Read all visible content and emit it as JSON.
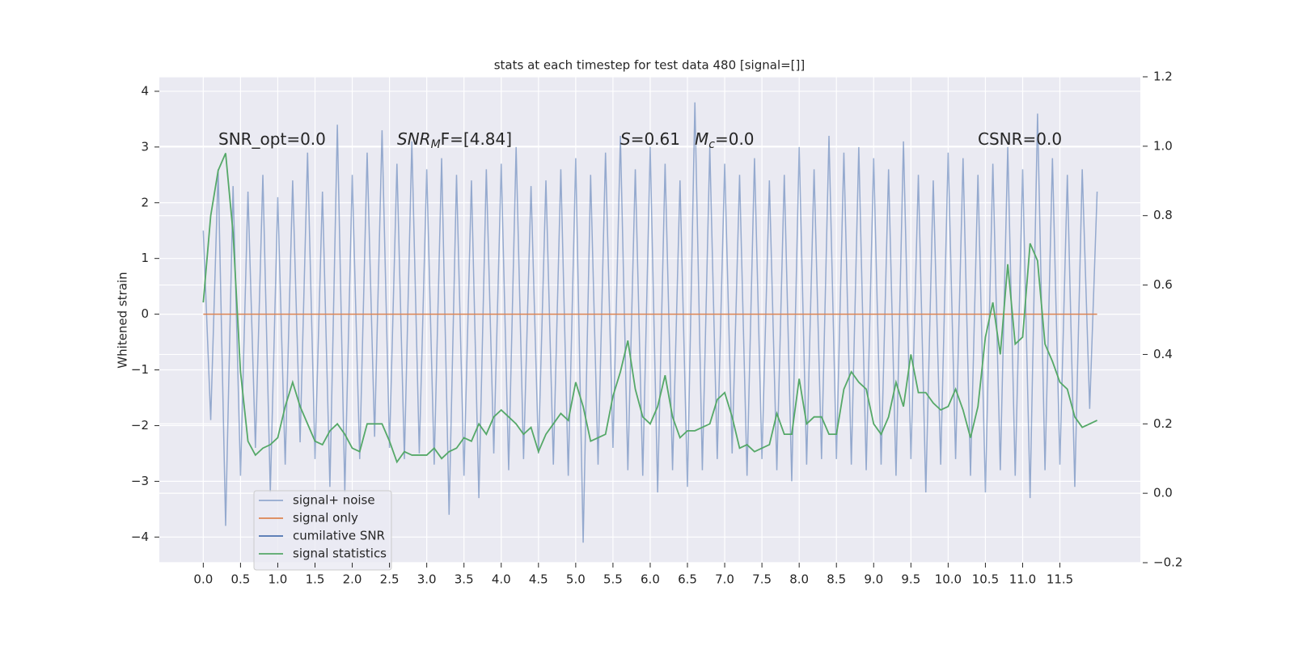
{
  "chart_data": {
    "type": "line",
    "title": "stats at each timestep for test data 480 [signal=[]]",
    "ylabel": "Whitened strain",
    "annotations": [
      {
        "main": "SNR_opt=0.0"
      },
      {
        "main": "SNR",
        "sub": "M",
        "rest": "F=[4.84]"
      },
      {
        "main": "S",
        "rest": "=0.61"
      },
      {
        "main": "M",
        "sub": "c",
        "rest": "=0.0"
      },
      {
        "main": "CSNR=0.0"
      }
    ],
    "x": [
      0,
      0.1,
      0.2,
      0.3,
      0.4,
      0.5,
      0.6,
      0.7,
      0.8,
      0.9,
      1,
      1.1,
      1.2,
      1.3,
      1.4,
      1.5,
      1.6,
      1.7,
      1.8,
      1.9,
      2,
      2.1,
      2.2,
      2.3,
      2.4,
      2.5,
      2.6,
      2.7,
      2.8,
      2.9,
      3,
      3.1,
      3.2,
      3.3,
      3.4,
      3.5,
      3.6,
      3.7,
      3.8,
      3.9,
      4,
      4.1,
      4.2,
      4.3,
      4.4,
      4.5,
      4.6,
      4.7,
      4.8,
      4.9,
      5,
      5.1,
      5.2,
      5.3,
      5.4,
      5.5,
      5.6,
      5.7,
      5.8,
      5.9,
      6,
      6.1,
      6.2,
      6.3,
      6.4,
      6.5,
      6.6,
      6.7,
      6.8,
      6.9,
      7,
      7.1,
      7.2,
      7.3,
      7.4,
      7.5,
      7.6,
      7.7,
      7.8,
      7.9,
      8,
      8.1,
      8.2,
      8.3,
      8.4,
      8.5,
      8.6,
      8.7,
      8.8,
      8.9,
      9,
      9.1,
      9.2,
      9.3,
      9.4,
      9.5,
      9.6,
      9.7,
      9.8,
      9.9,
      10,
      10.1,
      10.2,
      10.3,
      10.4,
      10.5,
      10.6,
      10.7,
      10.8,
      10.9,
      11,
      11.1,
      11.2,
      11.3,
      11.4,
      11.5,
      11.6,
      11.7,
      11.8,
      11.9,
      12
    ],
    "series": [
      {
        "name": "signal+ noise",
        "color": "#4c72b0",
        "alpha": 0.55,
        "axis": "y",
        "values": [
          1.5,
          -1.9,
          2.6,
          -3.8,
          2.3,
          -2.9,
          2.2,
          -2.4,
          2.5,
          -3.2,
          2.1,
          -2.7,
          2.4,
          -2.3,
          2.9,
          -2.6,
          2.2,
          -3.1,
          3.4,
          -3.2,
          2.5,
          -2.6,
          2.9,
          -2.2,
          3.3,
          -2.4,
          2.7,
          -2.6,
          3.1,
          -2.5,
          2.6,
          -2.7,
          2.8,
          -3.6,
          2.5,
          -2.9,
          2.4,
          -3.3,
          2.6,
          -2.5,
          2.7,
          -2.8,
          3.0,
          -2.6,
          2.3,
          -2.5,
          2.4,
          -2.7,
          2.6,
          -2.9,
          2.8,
          -4.1,
          2.5,
          -2.7,
          2.9,
          -2.4,
          3.2,
          -2.8,
          2.6,
          -2.9,
          3.0,
          -3.2,
          2.7,
          -2.8,
          2.4,
          -3.1,
          3.8,
          -2.8,
          3.0,
          -2.6,
          2.7,
          -2.5,
          2.5,
          -2.9,
          2.8,
          -2.6,
          2.4,
          -2.8,
          2.5,
          -3.0,
          3.0,
          -2.7,
          2.6,
          -2.6,
          3.2,
          -2.6,
          2.9,
          -2.7,
          3.0,
          -2.8,
          2.8,
          -2.7,
          2.6,
          -2.9,
          3.1,
          -2.6,
          2.5,
          -3.2,
          2.4,
          -2.7,
          2.9,
          -2.6,
          2.8,
          -2.9,
          2.5,
          -3.2,
          2.7,
          -2.8,
          3.0,
          -2.9,
          2.6,
          -3.3,
          3.6,
          -2.8,
          2.8,
          -2.7,
          2.5,
          -3.1,
          2.6,
          -1.7,
          2.2
        ]
      },
      {
        "name": "signal only",
        "color": "#dd8452",
        "alpha": 1,
        "axis": "y",
        "values": [
          0,
          0,
          0,
          0,
          0,
          0,
          0,
          0,
          0,
          0,
          0,
          0,
          0,
          0,
          0,
          0,
          0,
          0,
          0,
          0,
          0,
          0,
          0,
          0,
          0,
          0,
          0,
          0,
          0,
          0,
          0,
          0,
          0,
          0,
          0,
          0,
          0,
          0,
          0,
          0,
          0,
          0,
          0,
          0,
          0,
          0,
          0,
          0,
          0,
          0,
          0,
          0,
          0,
          0,
          0,
          0,
          0,
          0,
          0,
          0,
          0,
          0,
          0,
          0,
          0,
          0,
          0,
          0,
          0,
          0,
          0,
          0,
          0,
          0,
          0,
          0,
          0,
          0,
          0,
          0,
          0,
          0,
          0,
          0,
          0,
          0,
          0,
          0,
          0,
          0,
          0,
          0,
          0,
          0,
          0,
          0,
          0,
          0,
          0,
          0,
          0,
          0,
          0,
          0,
          0,
          0,
          0,
          0,
          0,
          0,
          0,
          0,
          0,
          0,
          0,
          0,
          0,
          0,
          0,
          0,
          0
        ]
      },
      {
        "name": "cumilative SNR",
        "color": "#4c72b0",
        "alpha": 1,
        "axis": "y2",
        "values": [
          null,
          null,
          null,
          null,
          null,
          null,
          null,
          null,
          null,
          null,
          null,
          null,
          null,
          null,
          null,
          null,
          null,
          null,
          null,
          null,
          null,
          null,
          null,
          null,
          null,
          null,
          null,
          null,
          null,
          null,
          null,
          null,
          null,
          null,
          null,
          null,
          null,
          null,
          null,
          null,
          null,
          null,
          null,
          null,
          null,
          null,
          null,
          null,
          null,
          null,
          null,
          null,
          null,
          null,
          null,
          null,
          null,
          null,
          null,
          null,
          null,
          null,
          null,
          null,
          null,
          null,
          null,
          null,
          null,
          null,
          null,
          null,
          null,
          null,
          null,
          null,
          null,
          null,
          null,
          null,
          null,
          null,
          null,
          null,
          null,
          null,
          null,
          null,
          null,
          null,
          null,
          null,
          null,
          null,
          null,
          null,
          null,
          null,
          null,
          null,
          null,
          null,
          null,
          null,
          null,
          null,
          null,
          null,
          null,
          null,
          null,
          null,
          null,
          null,
          null,
          null,
          null,
          null,
          null,
          null,
          null
        ]
      },
      {
        "name": "signal statistics",
        "color": "#55a868",
        "alpha": 1,
        "axis": "y2",
        "values": [
          0.55,
          0.8,
          0.93,
          0.98,
          0.75,
          0.35,
          0.15,
          0.11,
          0.13,
          0.14,
          0.16,
          0.25,
          0.32,
          0.25,
          0.2,
          0.15,
          0.14,
          0.18,
          0.2,
          0.17,
          0.13,
          0.12,
          0.2,
          0.2,
          0.2,
          0.15,
          0.09,
          0.12,
          0.11,
          0.11,
          0.11,
          0.13,
          0.1,
          0.12,
          0.13,
          0.16,
          0.15,
          0.2,
          0.17,
          0.22,
          0.24,
          0.22,
          0.2,
          0.17,
          0.19,
          0.12,
          0.17,
          0.2,
          0.23,
          0.21,
          0.32,
          0.25,
          0.15,
          0.16,
          0.17,
          0.28,
          0.35,
          0.44,
          0.3,
          0.22,
          0.2,
          0.25,
          0.34,
          0.22,
          0.16,
          0.18,
          0.18,
          0.19,
          0.2,
          0.27,
          0.29,
          0.22,
          0.13,
          0.14,
          0.12,
          0.13,
          0.14,
          0.23,
          0.17,
          0.17,
          0.33,
          0.2,
          0.22,
          0.22,
          0.17,
          0.17,
          0.3,
          0.35,
          0.32,
          0.3,
          0.2,
          0.17,
          0.22,
          0.32,
          0.25,
          0.4,
          0.29,
          0.29,
          0.26,
          0.24,
          0.25,
          0.3,
          0.24,
          0.16,
          0.25,
          0.45,
          0.55,
          0.4,
          0.66,
          0.43,
          0.45,
          0.72,
          0.67,
          0.43,
          0.38,
          0.32,
          0.3,
          0.22,
          0.19,
          0.2,
          0.21
        ]
      }
    ],
    "xlim": [
      -0.59,
      12.58
    ],
    "xticks": [
      {
        "value": 0,
        "label": "0.0"
      },
      0.5,
      {
        "value": 1,
        "label": "1.0"
      },
      1.5,
      {
        "value": 2,
        "label": "2.0"
      },
      2.5,
      {
        "value": 3,
        "label": "3.0"
      },
      3.5,
      {
        "value": 4,
        "label": "4.0"
      },
      4.5,
      {
        "value": 5,
        "label": "5.0"
      },
      5.5,
      {
        "value": 6,
        "label": "6.0"
      },
      6.5,
      {
        "value": 7,
        "label": "7.0"
      },
      7.5,
      {
        "value": 8,
        "label": "8.0"
      },
      8.5,
      {
        "value": 9,
        "label": "9.0"
      },
      9.5,
      {
        "value": 10,
        "label": "10.0"
      },
      10.5,
      {
        "value": 11,
        "label": "11.0"
      },
      11.5
    ],
    "ylim": [
      -4.46,
      4.26
    ],
    "yticks": [
      {
        "value": -4,
        "label": "−4"
      },
      {
        "value": -3,
        "label": "−3"
      },
      {
        "value": -2,
        "label": "−2"
      },
      {
        "value": -1,
        "label": "−1"
      },
      0,
      1,
      2,
      3,
      4
    ],
    "y2lim": [
      -0.2,
      1.2
    ],
    "y2ticks": [
      {
        "value": -0.2,
        "label": "−0.2"
      },
      {
        "value": 0,
        "label": "0.0"
      },
      0.2,
      0.4,
      0.6,
      0.8,
      {
        "value": 1,
        "label": "1.0"
      },
      1.2
    ],
    "grid": true,
    "legend": "lower left"
  }
}
